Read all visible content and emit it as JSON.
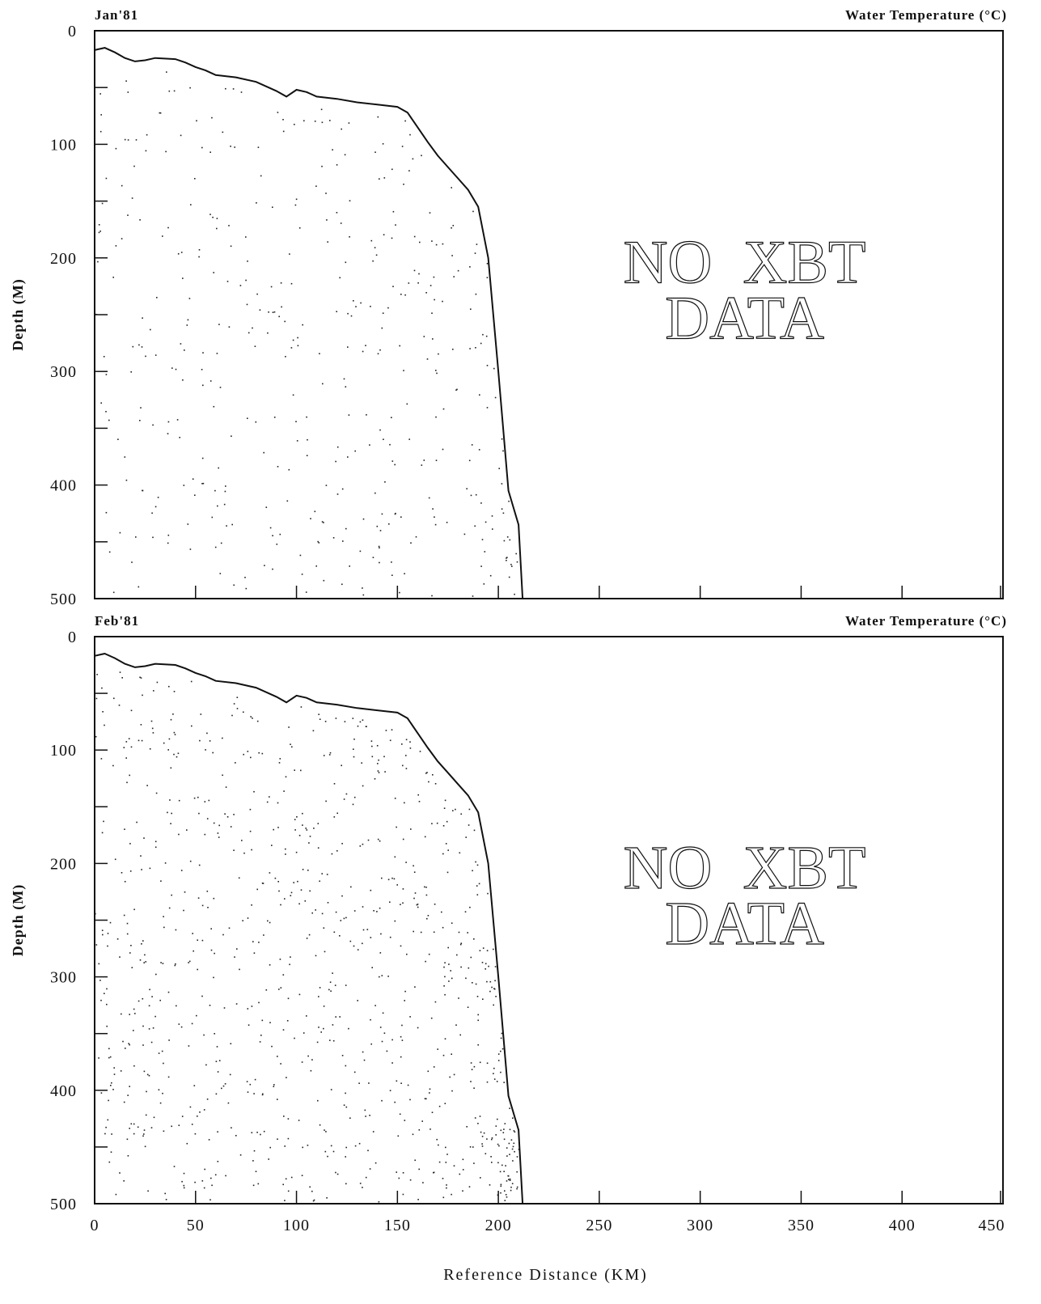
{
  "chart_data": [
    {
      "type": "area",
      "panel_label": "Jan'81",
      "title": "Water Temperature (°C)",
      "ylabel": "Depth (M)",
      "xlabel": "",
      "xlim": [
        0,
        450
      ],
      "ylim": [
        0,
        500
      ],
      "y_inverted": true,
      "y_ticks": [
        0,
        100,
        200,
        300,
        400,
        500
      ],
      "x_ticks": [],
      "annotation": [
        "NO XBT",
        "DATA"
      ],
      "grid": false,
      "bathymetry": {
        "x": [
          0,
          5,
          10,
          15,
          20,
          25,
          30,
          40,
          45,
          50,
          55,
          60,
          70,
          80,
          90,
          95,
          100,
          105,
          110,
          120,
          130,
          140,
          150,
          155,
          160,
          165,
          170,
          175,
          180,
          185,
          190,
          195,
          200,
          205,
          210,
          212
        ],
        "y": [
          17,
          15,
          19,
          24,
          27,
          26,
          24,
          25,
          28,
          32,
          35,
          39,
          41,
          45,
          53,
          58,
          52,
          54,
          58,
          60,
          63,
          65,
          67,
          72,
          85,
          98,
          110,
          120,
          130,
          140,
          155,
          200,
          300,
          405,
          435,
          500
        ]
      }
    },
    {
      "type": "area",
      "panel_label": "Feb'81",
      "title": "Water Temperature (°C)",
      "ylabel": "Depth (M)",
      "xlabel": "Reference Distance (KM)",
      "xlim": [
        0,
        450
      ],
      "ylim": [
        0,
        500
      ],
      "y_inverted": true,
      "y_ticks": [
        0,
        100,
        200,
        300,
        400,
        500
      ],
      "x_ticks": [
        0,
        50,
        100,
        150,
        200,
        250,
        300,
        350,
        400,
        450
      ],
      "annotation": [
        "NO XBT",
        "DATA"
      ],
      "grid": false,
      "bathymetry": {
        "x": [
          0,
          5,
          10,
          15,
          20,
          25,
          30,
          40,
          45,
          50,
          55,
          60,
          70,
          80,
          90,
          95,
          100,
          105,
          110,
          120,
          130,
          140,
          150,
          155,
          160,
          165,
          170,
          175,
          180,
          185,
          190,
          195,
          200,
          205,
          210,
          212
        ],
        "y": [
          17,
          15,
          19,
          24,
          27,
          26,
          24,
          25,
          28,
          32,
          35,
          39,
          41,
          45,
          53,
          58,
          52,
          54,
          58,
          60,
          63,
          65,
          67,
          72,
          85,
          98,
          110,
          120,
          130,
          140,
          155,
          200,
          300,
          405,
          435,
          500
        ]
      }
    }
  ]
}
